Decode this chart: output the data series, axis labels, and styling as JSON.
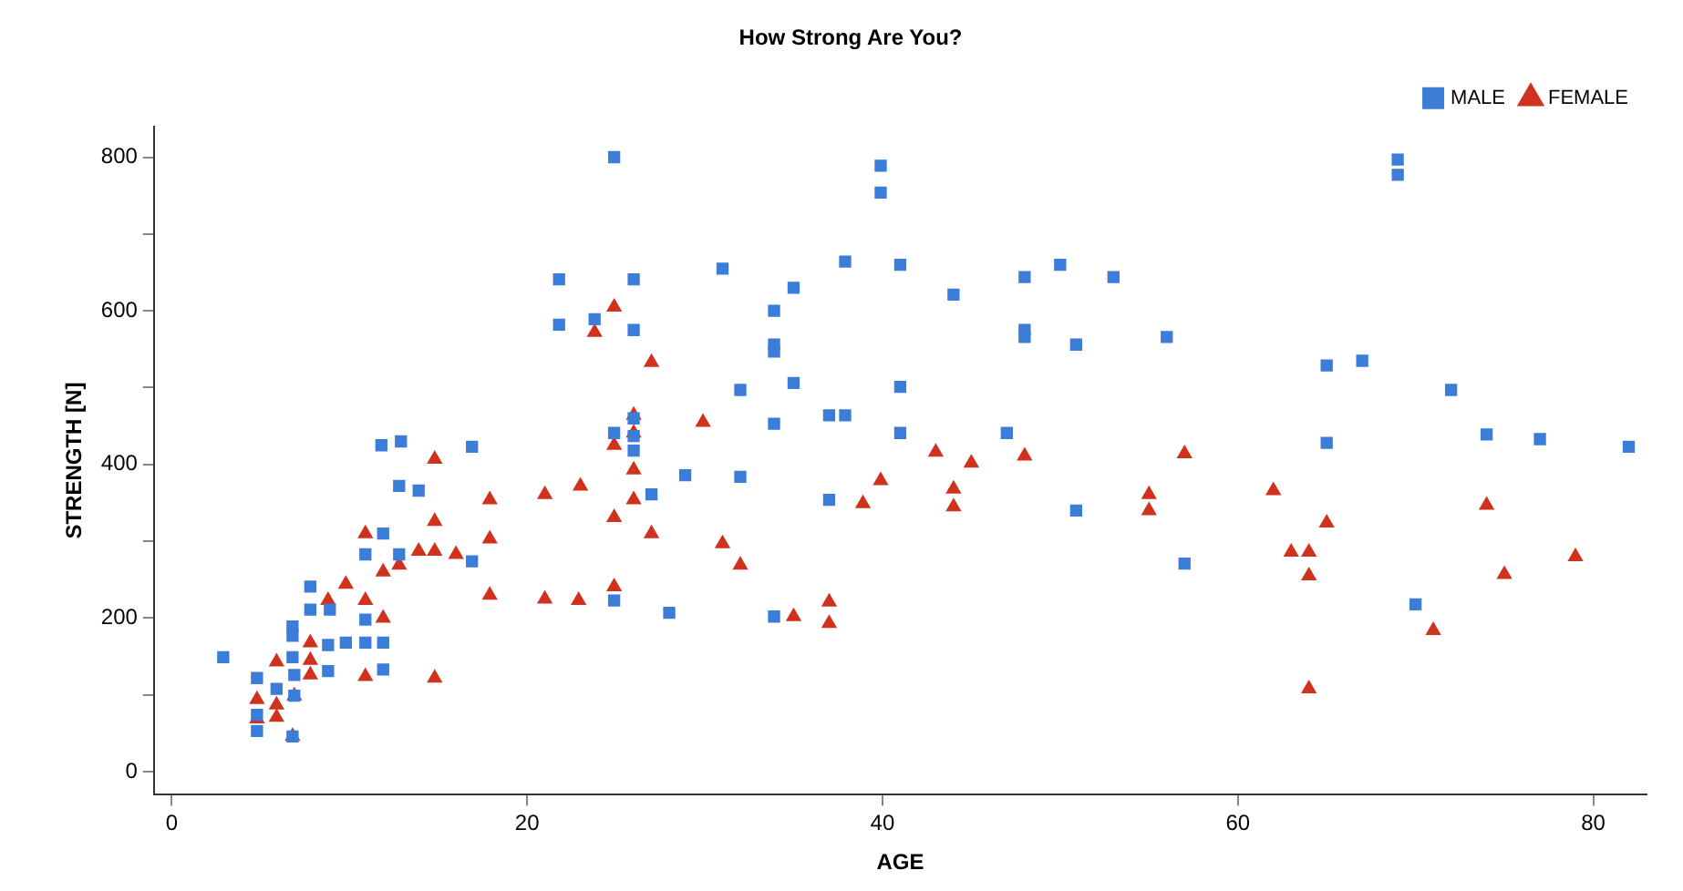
{
  "chart_data": {
    "type": "scatter",
    "title": "How Strong Are You?",
    "xlabel": "AGE",
    "ylabel": "STRENGTH [N]",
    "xlim": [
      -1,
      83
    ],
    "ylim": [
      -30,
      840
    ],
    "xticks": [
      0,
      20,
      40,
      60,
      80
    ],
    "yticks": [
      0,
      {
        "value": 100,
        "label": null
      },
      200,
      {
        "value": 300,
        "label": null
      },
      400,
      {
        "value": 500,
        "label": null
      },
      600,
      {
        "value": 700,
        "label": null
      },
      800
    ],
    "grid": false,
    "legend": "top right",
    "series": [
      {
        "name": "MALE",
        "color": "#3b7dd8",
        "marker": "square",
        "x": [
          2.9,
          11.8,
          12.9,
          16.9,
          12.8,
          13.9,
          11.9,
          10.9,
          12.8,
          16.9,
          7.8,
          7.8,
          8.9,
          6.8,
          6.8,
          8.8,
          9.8,
          10.9,
          11.9,
          10.9,
          6.8,
          8.8,
          11.9,
          4.8,
          5.9,
          6.9,
          4.8,
          4.8,
          6.8,
          6.9,
          24.9,
          21.8,
          26,
          21.8,
          23.8,
          26,
          31,
          35,
          33.9,
          33.9,
          33.9,
          35,
          32,
          33.9,
          37.9,
          37,
          37.9,
          24.9,
          26,
          26,
          26,
          28.9,
          32,
          27,
          37,
          24.9,
          28,
          33.9,
          39.9,
          39.9,
          41,
          41,
          41,
          44,
          48,
          50,
          53,
          48,
          48,
          50.9,
          56,
          47,
          50.9,
          57,
          69,
          69,
          65,
          67,
          72,
          65,
          74,
          77,
          82,
          70
        ],
        "values": [
          149,
          425,
          430,
          423,
          372,
          366,
          310,
          283,
          283,
          274,
          241,
          211,
          211,
          189,
          177,
          165,
          168,
          168,
          168,
          198,
          149,
          131,
          133,
          122,
          108,
          99,
          74,
          53,
          46,
          126,
          800,
          641,
          641,
          582,
          589,
          575,
          655,
          630,
          600,
          556,
          547,
          506,
          497,
          453,
          664,
          464,
          464,
          441,
          460,
          437,
          418,
          386,
          384,
          361,
          354,
          223,
          207,
          202,
          789,
          754,
          660,
          501,
          441,
          621,
          644,
          660,
          644,
          575,
          566,
          556,
          566,
          441,
          340,
          271,
          797,
          777,
          529,
          535,
          497,
          428,
          439,
          433,
          423,
          218
        ]
      },
      {
        "name": "FEMALE",
        "color": "#d0321d",
        "marker": "triangle",
        "x": [
          14.8,
          17.9,
          14.8,
          17.9,
          10.9,
          13.9,
          14.8,
          16,
          11.9,
          12.8,
          9.8,
          8.8,
          10.9,
          17.9,
          11.9,
          7.8,
          7.8,
          7.8,
          5.9,
          10.9,
          14.8,
          4.8,
          5.9,
          5.9,
          4.8,
          6.9,
          6.8,
          24.9,
          23.8,
          27,
          26,
          26,
          24.9,
          29.9,
          26,
          23,
          21,
          26,
          24.9,
          27,
          31,
          32,
          24.9,
          21,
          22.9,
          35,
          37,
          37,
          38.9,
          39.9,
          43,
          45,
          48,
          44,
          44,
          55,
          55,
          57,
          62,
          65,
          63,
          64,
          64,
          64,
          71,
          74,
          75,
          79
        ],
        "values": [
          407,
          354,
          326,
          303,
          310,
          287,
          287,
          283,
          260,
          269,
          244,
          223,
          223,
          230,
          200,
          168,
          145,
          126,
          143,
          124,
          122,
          94,
          87,
          71,
          69,
          99,
          46,
          605,
          572,
          533,
          464,
          441,
          425,
          455,
          393,
          372,
          361,
          354,
          331,
          310,
          297,
          269,
          241,
          225,
          223,
          202,
          221,
          193,
          349,
          379,
          416,
          402,
          411,
          368,
          345,
          361,
          340,
          414,
          366,
          324,
          286,
          286,
          255,
          108,
          184,
          347,
          257,
          280
        ]
      }
    ]
  }
}
